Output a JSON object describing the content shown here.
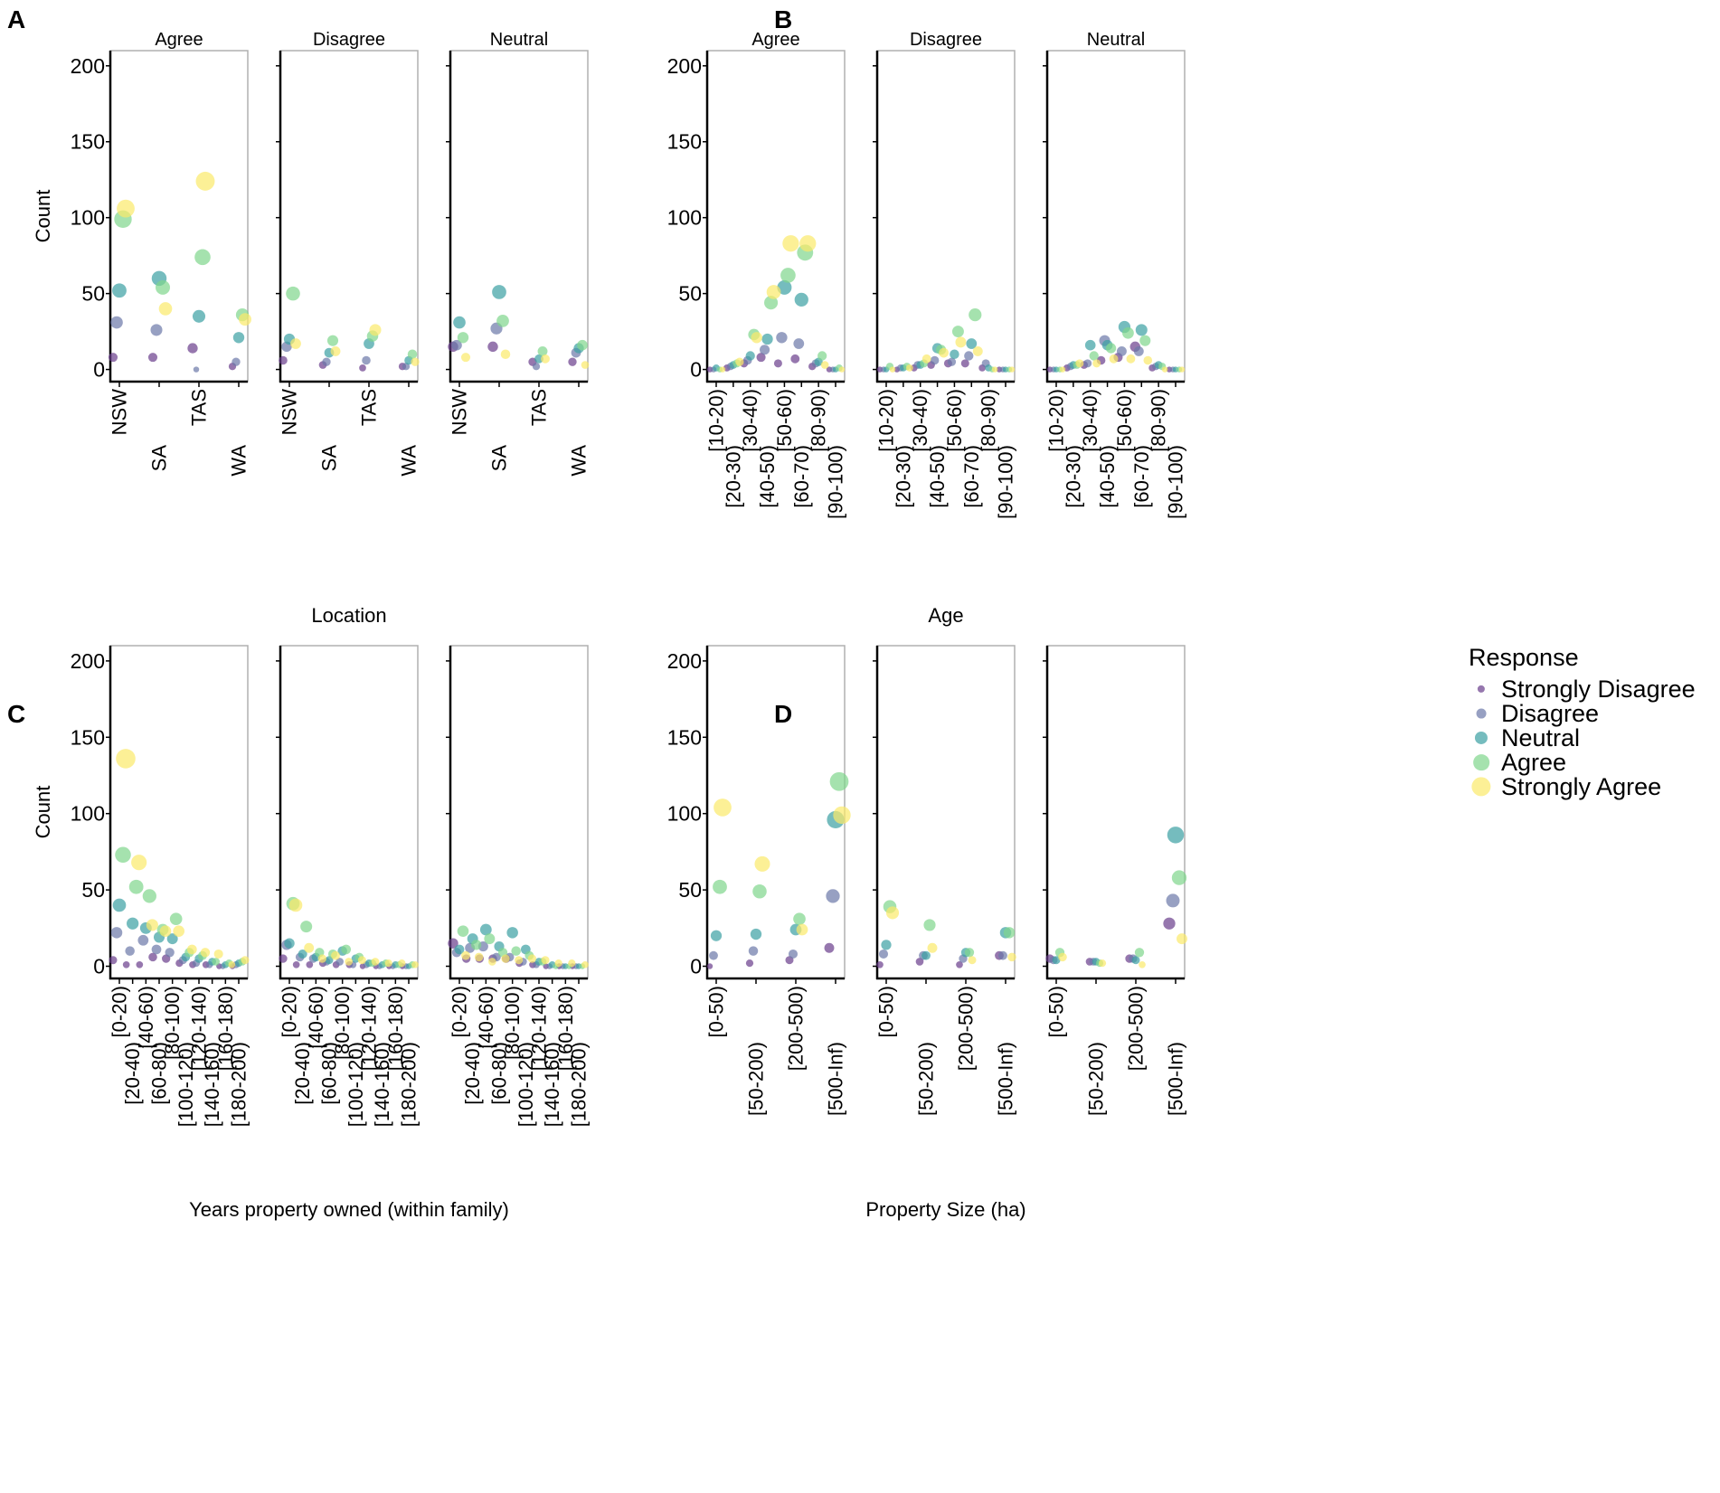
{
  "panel_labels": [
    "A",
    "B",
    "C",
    "D"
  ],
  "legend": {
    "title": "Response",
    "items": [
      "Strongly Disagree",
      "Disagree",
      "Neutral",
      "Agree",
      "Strongly Agree"
    ],
    "colors": [
      "#6a3d8c",
      "#6b78a8",
      "#3aa0a2",
      "#7fd68b",
      "#fbe96a"
    ]
  },
  "chart_data": [
    {
      "id": "A",
      "type": "scatter",
      "facets": [
        "Agree",
        "Disagree",
        "Neutral"
      ],
      "xlabel": "",
      "ylabel": "Count",
      "ylim": [
        -8,
        210
      ],
      "yticks": [
        0,
        50,
        100,
        150,
        200
      ],
      "categories": [
        "NSW",
        "SA",
        "TAS",
        "WA"
      ],
      "series": [
        {
          "name": "Strongly Disagree",
          "values": [
            [
              8,
              8,
              14,
              2
            ],
            [
              6,
              3,
              1,
              2
            ],
            [
              15,
              15,
              5,
              5
            ]
          ]
        },
        {
          "name": "Disagree",
          "values": [
            [
              31,
              26,
              0,
              5
            ],
            [
              15,
              5,
              6,
              2
            ],
            [
              16,
              27,
              2,
              11
            ]
          ]
        },
        {
          "name": "Neutral",
          "values": [
            [
              52,
              60,
              35,
              21
            ],
            [
              20,
              11,
              17,
              6
            ],
            [
              31,
              51,
              7,
              14
            ]
          ]
        },
        {
          "name": "Agree",
          "values": [
            [
              99,
              54,
              74,
              36
            ],
            [
              50,
              19,
              22,
              10
            ],
            [
              21,
              32,
              12,
              16
            ]
          ]
        },
        {
          "name": "Strongly Agree",
          "values": [
            [
              106,
              40,
              124,
              33
            ],
            [
              17,
              12,
              26,
              5
            ],
            [
              8,
              10,
              7,
              3
            ]
          ]
        }
      ]
    },
    {
      "id": "B",
      "type": "scatter",
      "facets": [
        "Agree",
        "Disagree",
        "Neutral"
      ],
      "xlabel": "",
      "ylabel": "",
      "ylim": [
        -8,
        210
      ],
      "yticks": [
        0,
        50,
        100,
        150,
        200
      ],
      "categories": [
        "[10-20)",
        "[20-30)",
        "[30-40)",
        "[40-50)",
        "[50-60)",
        "[60-70)",
        "[80-90)",
        "[90-100)"
      ],
      "series": [
        {
          "name": "Strongly Disagree",
          "values": [
            [
              0,
              1,
              4,
              8,
              4,
              7,
              2,
              0
            ],
            [
              0,
              0,
              1,
              3,
              4,
              4,
              1,
              0
            ],
            [
              0,
              1,
              3,
              6,
              8,
              15,
              1,
              0
            ]
          ]
        },
        {
          "name": "Disagree",
          "values": [
            [
              0,
              2,
              6,
              13,
              21,
              17,
              4,
              0
            ],
            [
              0,
              1,
              3,
              6,
              5,
              9,
              4,
              0
            ],
            [
              0,
              2,
              4,
              19,
              12,
              12,
              2,
              0
            ]
          ]
        },
        {
          "name": "Neutral",
          "values": [
            [
              1,
              3,
              9,
              20,
              54,
              46,
              5,
              0
            ],
            [
              0,
              1,
              3,
              14,
              10,
              17,
              1,
              0
            ],
            [
              0,
              3,
              16,
              16,
              28,
              26,
              3,
              0
            ]
          ]
        },
        {
          "name": "Agree",
          "values": [
            [
              0,
              4,
              23,
              44,
              62,
              77,
              9,
              1
            ],
            [
              2,
              2,
              4,
              13,
              25,
              36,
              0,
              0
            ],
            [
              0,
              3,
              9,
              14,
              24,
              19,
              2,
              0
            ]
          ]
        },
        {
          "name": "Strongly Agree",
          "values": [
            [
              0,
              5,
              21,
              51,
              83,
              83,
              3,
              0
            ],
            [
              0,
              1,
              7,
              11,
              18,
              12,
              0,
              0
            ],
            [
              0,
              4,
              4,
              7,
              7,
              6,
              0,
              0
            ]
          ]
        }
      ]
    },
    {
      "id": "C",
      "type": "scatter",
      "title": "Location",
      "facets": [
        "",
        "",
        ""
      ],
      "xlabel": "Years property owned (within family)",
      "ylabel": "Count",
      "ylim": [
        -8,
        210
      ],
      "yticks": [
        0,
        50,
        100,
        150,
        200
      ],
      "categories": [
        "[0-20)",
        "[20-40)",
        "[40-60)",
        "[60-80)",
        "[80-100)",
        "[100-120)",
        "[120-140)",
        "[140-160)",
        "[160-180)",
        "[180-200)"
      ],
      "series": [
        {
          "name": "Strongly Disagree",
          "values": [
            [
              4,
              1,
              1,
              6,
              5,
              2,
              1,
              1,
              0,
              0
            ],
            [
              5,
              1,
              1,
              2,
              1,
              1,
              0,
              0,
              0,
              0
            ],
            [
              15,
              5,
              5,
              5,
              5,
              2,
              1,
              0,
              0,
              0
            ]
          ]
        },
        {
          "name": "Disagree",
          "values": [
            [
              22,
              10,
              17,
              11,
              9,
              4,
              2,
              1,
              0,
              1
            ],
            [
              14,
              6,
              5,
              3,
              3,
              1,
              1,
              0,
              0,
              0
            ],
            [
              9,
              12,
              13,
              6,
              6,
              3,
              1,
              0,
              0,
              0
            ]
          ]
        },
        {
          "name": "Neutral",
          "values": [
            [
              40,
              28,
              25,
              19,
              18,
              6,
              5,
              3,
              1,
              2
            ],
            [
              15,
              8,
              6,
              4,
              10,
              5,
              2,
              1,
              1,
              0
            ],
            [
              11,
              18,
              24,
              13,
              22,
              11,
              3,
              1,
              0,
              0
            ]
          ]
        },
        {
          "name": "Agree",
          "values": [
            [
              73,
              52,
              46,
              24,
              31,
              9,
              7,
              3,
              2,
              3
            ],
            [
              41,
              26,
              9,
              8,
              11,
              6,
              2,
              2,
              1,
              1
            ],
            [
              23,
              14,
              18,
              9,
              10,
              7,
              3,
              0,
              0,
              0
            ]
          ]
        },
        {
          "name": "Strongly Agree",
          "values": [
            [
              136,
              68,
              27,
              23,
              23,
              11,
              9,
              8,
              1,
              4
            ],
            [
              40,
              12,
              5,
              7,
              3,
              4,
              3,
              2,
              2,
              1
            ],
            [
              7,
              6,
              3,
              5,
              4,
              5,
              4,
              2,
              2,
              1
            ]
          ]
        }
      ]
    },
    {
      "id": "D",
      "type": "scatter",
      "title": "Age",
      "facets": [
        "",
        "",
        ""
      ],
      "xlabel": "Property Size (ha)",
      "ylabel": "",
      "ylim": [
        -8,
        210
      ],
      "yticks": [
        0,
        50,
        100,
        150,
        200
      ],
      "categories": [
        "[0-50)",
        "[50-200)",
        "[200-500)",
        "[500-Inf)"
      ],
      "series": [
        {
          "name": "Strongly Disagree",
          "values": [
            [
              0,
              2,
              4,
              12
            ],
            [
              1,
              3,
              1,
              7
            ],
            [
              5,
              3,
              5,
              28
            ]
          ]
        },
        {
          "name": "Disagree",
          "values": [
            [
              7,
              10,
              8,
              46
            ],
            [
              8,
              7,
              5,
              7
            ],
            [
              4,
              3,
              5,
              43
            ]
          ]
        },
        {
          "name": "Neutral",
          "values": [
            [
              20,
              21,
              24,
              96
            ],
            [
              14,
              7,
              9,
              22
            ],
            [
              4,
              3,
              4,
              86
            ]
          ]
        },
        {
          "name": "Agree",
          "values": [
            [
              52,
              49,
              31,
              121
            ],
            [
              39,
              27,
              9,
              22
            ],
            [
              9,
              2,
              9,
              58
            ]
          ]
        },
        {
          "name": "Strongly Agree",
          "values": [
            [
              104,
              67,
              24,
              99
            ],
            [
              35,
              12,
              4,
              6
            ],
            [
              6,
              2,
              1,
              18
            ]
          ]
        }
      ]
    }
  ]
}
